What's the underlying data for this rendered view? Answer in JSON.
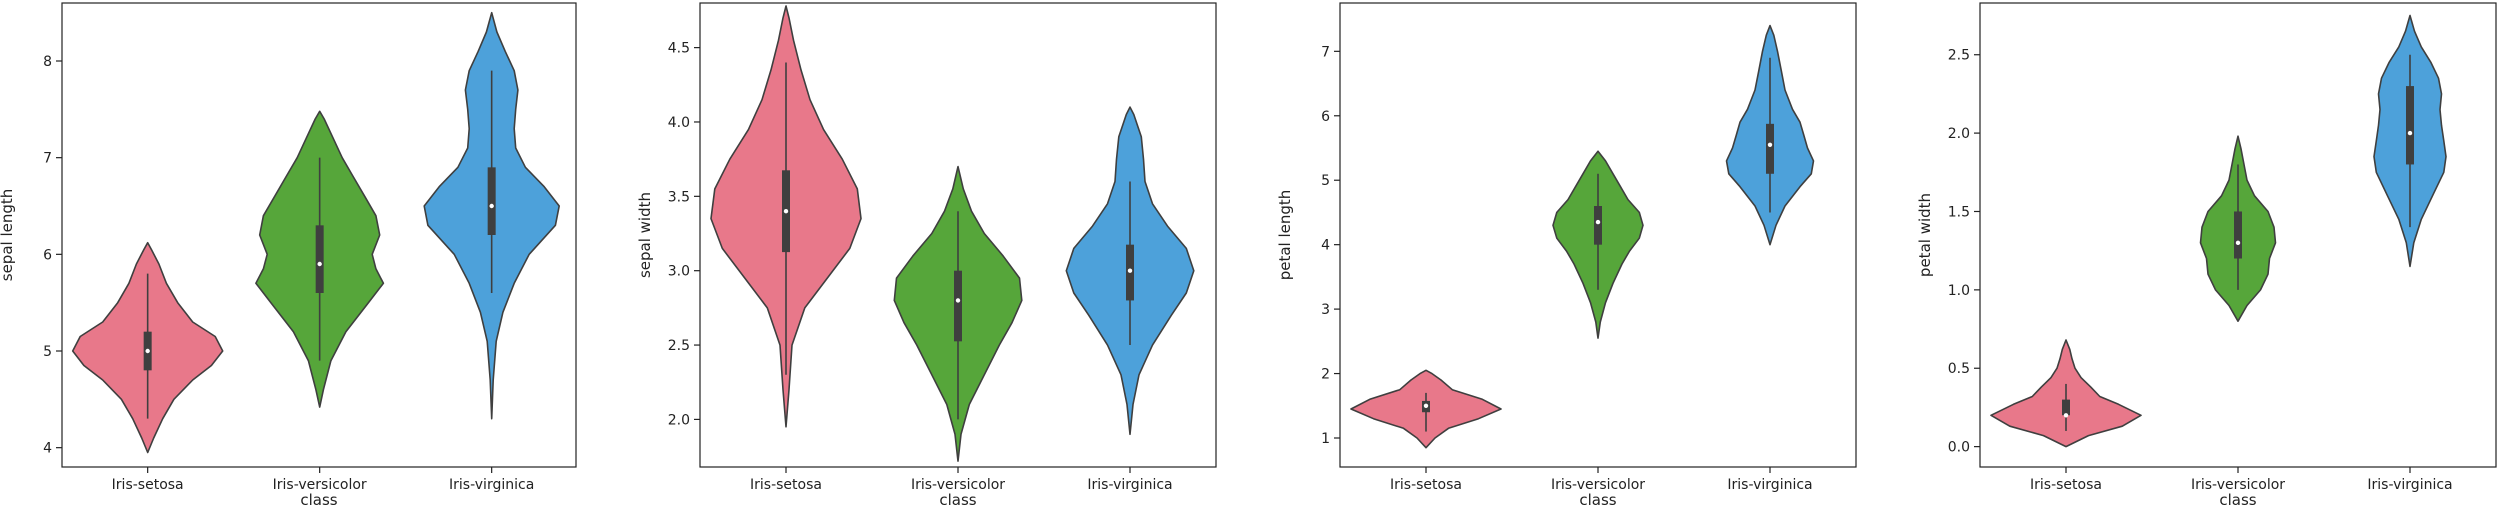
{
  "chart_data": [
    {
      "type": "violin",
      "xlabel": "class",
      "ylabel": "sepal length",
      "categories": [
        "Iris-setosa",
        "Iris-versicolor",
        "Iris-virginica"
      ],
      "ylim": [
        3.8,
        8.6
      ],
      "yticks": [
        4,
        5,
        6,
        7,
        8
      ],
      "violins": [
        {
          "category": "Iris-setosa",
          "color": "#e8788a",
          "density": [
            [
              3.95,
              0.0
            ],
            [
              4.1,
              0.08
            ],
            [
              4.3,
              0.2
            ],
            [
              4.5,
              0.35
            ],
            [
              4.7,
              0.6
            ],
            [
              4.85,
              0.85
            ],
            [
              5.0,
              1.0
            ],
            [
              5.15,
              0.9
            ],
            [
              5.3,
              0.6
            ],
            [
              5.5,
              0.4
            ],
            [
              5.7,
              0.25
            ],
            [
              5.9,
              0.15
            ],
            [
              6.05,
              0.05
            ],
            [
              6.12,
              0.0
            ]
          ],
          "whisker": [
            4.3,
            5.8
          ],
          "q1": 4.8,
          "q3": 5.2,
          "median": 5.0
        },
        {
          "category": "Iris-versicolor",
          "color": "#56a63a",
          "density": [
            [
              4.42,
              0.0
            ],
            [
              4.6,
              0.05
            ],
            [
              4.9,
              0.15
            ],
            [
              5.2,
              0.35
            ],
            [
              5.5,
              0.65
            ],
            [
              5.7,
              0.85
            ],
            [
              5.85,
              0.75
            ],
            [
              6.0,
              0.7
            ],
            [
              6.2,
              0.8
            ],
            [
              6.4,
              0.75
            ],
            [
              6.6,
              0.6
            ],
            [
              6.8,
              0.45
            ],
            [
              7.0,
              0.3
            ],
            [
              7.2,
              0.18
            ],
            [
              7.4,
              0.06
            ],
            [
              7.48,
              0.0
            ]
          ],
          "whisker": [
            4.9,
            7.0
          ],
          "q1": 5.6,
          "q3": 6.3,
          "median": 5.9
        },
        {
          "category": "Iris-virginica",
          "color": "#4da1da",
          "density": [
            [
              4.3,
              0.0
            ],
            [
              4.7,
              0.02
            ],
            [
              5.1,
              0.06
            ],
            [
              5.4,
              0.15
            ],
            [
              5.7,
              0.3
            ],
            [
              6.0,
              0.5
            ],
            [
              6.3,
              0.85
            ],
            [
              6.5,
              0.9
            ],
            [
              6.7,
              0.7
            ],
            [
              6.9,
              0.45
            ],
            [
              7.1,
              0.32
            ],
            [
              7.3,
              0.3
            ],
            [
              7.5,
              0.32
            ],
            [
              7.7,
              0.35
            ],
            [
              7.9,
              0.3
            ],
            [
              8.1,
              0.18
            ],
            [
              8.3,
              0.07
            ],
            [
              8.5,
              0.0
            ]
          ],
          "whisker": [
            5.6,
            7.9
          ],
          "q1": 6.2,
          "q3": 6.9,
          "median": 6.5
        }
      ]
    },
    {
      "type": "violin",
      "xlabel": "class",
      "ylabel": "sepal width",
      "categories": [
        "Iris-setosa",
        "Iris-versicolor",
        "Iris-virginica"
      ],
      "ylim": [
        1.68,
        4.8
      ],
      "yticks": [
        2.0,
        2.5,
        3.0,
        3.5,
        4.0,
        4.5
      ],
      "yticklabels": [
        "2.0",
        "2.5",
        "3.0",
        "3.5",
        "4.0",
        "4.5"
      ],
      "violins": [
        {
          "category": "Iris-setosa",
          "color": "#e8788a",
          "density": [
            [
              1.95,
              0.0
            ],
            [
              2.2,
              0.04
            ],
            [
              2.5,
              0.08
            ],
            [
              2.75,
              0.25
            ],
            [
              2.95,
              0.55
            ],
            [
              3.15,
              0.85
            ],
            [
              3.35,
              1.0
            ],
            [
              3.55,
              0.95
            ],
            [
              3.75,
              0.75
            ],
            [
              3.95,
              0.5
            ],
            [
              4.15,
              0.32
            ],
            [
              4.35,
              0.2
            ],
            [
              4.55,
              0.1
            ],
            [
              4.7,
              0.04
            ],
            [
              4.78,
              0.0
            ]
          ],
          "whisker": [
            2.3,
            4.4
          ],
          "q1": 3.125,
          "q3": 3.675,
          "median": 3.4
        },
        {
          "category": "Iris-versicolor",
          "color": "#56a63a",
          "density": [
            [
              1.72,
              0.0
            ],
            [
              1.9,
              0.04
            ],
            [
              2.1,
              0.15
            ],
            [
              2.3,
              0.35
            ],
            [
              2.5,
              0.55
            ],
            [
              2.65,
              0.72
            ],
            [
              2.8,
              0.85
            ],
            [
              2.95,
              0.82
            ],
            [
              3.1,
              0.6
            ],
            [
              3.25,
              0.35
            ],
            [
              3.4,
              0.18
            ],
            [
              3.55,
              0.07
            ],
            [
              3.7,
              0.0
            ]
          ],
          "whisker": [
            2.0,
            3.4
          ],
          "q1": 2.525,
          "q3": 3.0,
          "median": 2.8
        },
        {
          "category": "Iris-virginica",
          "color": "#4da1da",
          "density": [
            [
              1.9,
              0.0
            ],
            [
              2.1,
              0.04
            ],
            [
              2.3,
              0.12
            ],
            [
              2.5,
              0.3
            ],
            [
              2.7,
              0.55
            ],
            [
              2.85,
              0.75
            ],
            [
              3.0,
              0.85
            ],
            [
              3.15,
              0.75
            ],
            [
              3.3,
              0.5
            ],
            [
              3.45,
              0.3
            ],
            [
              3.6,
              0.2
            ],
            [
              3.75,
              0.18
            ],
            [
              3.9,
              0.15
            ],
            [
              4.05,
              0.05
            ],
            [
              4.1,
              0.0
            ]
          ],
          "whisker": [
            2.5,
            3.6
          ],
          "q1": 2.8,
          "q3": 3.175,
          "median": 3.0
        }
      ]
    },
    {
      "type": "violin",
      "xlabel": "class",
      "ylabel": "petal length",
      "categories": [
        "Iris-setosa",
        "Iris-versicolor",
        "Iris-virginica"
      ],
      "ylim": [
        0.55,
        7.75
      ],
      "yticks": [
        1,
        2,
        3,
        4,
        5,
        6,
        7
      ],
      "violins": [
        {
          "category": "Iris-setosa",
          "color": "#e8788a",
          "density": [
            [
              0.85,
              0.0
            ],
            [
              1.0,
              0.12
            ],
            [
              1.15,
              0.3
            ],
            [
              1.3,
              0.7
            ],
            [
              1.45,
              1.0
            ],
            [
              1.6,
              0.75
            ],
            [
              1.75,
              0.35
            ],
            [
              1.9,
              0.2
            ],
            [
              2.0,
              0.08
            ],
            [
              2.05,
              0.0
            ]
          ],
          "whisker": [
            1.1,
            1.7
          ],
          "q1": 1.4,
          "q3": 1.575,
          "median": 1.5
        },
        {
          "category": "Iris-versicolor",
          "color": "#56a63a",
          "density": [
            [
              2.55,
              0.0
            ],
            [
              2.8,
              0.03
            ],
            [
              3.1,
              0.1
            ],
            [
              3.4,
              0.2
            ],
            [
              3.7,
              0.32
            ],
            [
              3.9,
              0.42
            ],
            [
              4.1,
              0.55
            ],
            [
              4.3,
              0.6
            ],
            [
              4.5,
              0.55
            ],
            [
              4.7,
              0.4
            ],
            [
              4.9,
              0.3
            ],
            [
              5.1,
              0.2
            ],
            [
              5.3,
              0.1
            ],
            [
              5.45,
              0.0
            ]
          ],
          "whisker": [
            3.3,
            5.1
          ],
          "q1": 4.0,
          "q3": 4.6,
          "median": 4.35
        },
        {
          "category": "Iris-virginica",
          "color": "#4da1da",
          "density": [
            [
              4.0,
              0.0
            ],
            [
              4.3,
              0.08
            ],
            [
              4.6,
              0.2
            ],
            [
              4.9,
              0.4
            ],
            [
              5.1,
              0.55
            ],
            [
              5.3,
              0.58
            ],
            [
              5.5,
              0.5
            ],
            [
              5.7,
              0.45
            ],
            [
              5.9,
              0.4
            ],
            [
              6.1,
              0.3
            ],
            [
              6.4,
              0.2
            ],
            [
              6.7,
              0.15
            ],
            [
              7.0,
              0.1
            ],
            [
              7.25,
              0.05
            ],
            [
              7.4,
              0.0
            ]
          ],
          "whisker": [
            4.5,
            6.9
          ],
          "q1": 5.1,
          "q3": 5.875,
          "median": 5.55
        }
      ]
    },
    {
      "type": "violin",
      "xlabel": "class",
      "ylabel": "petal width",
      "categories": [
        "Iris-setosa",
        "Iris-versicolor",
        "Iris-virginica"
      ],
      "ylim": [
        -0.13,
        2.83
      ],
      "yticks": [
        0.0,
        0.5,
        1.0,
        1.5,
        2.0,
        2.5
      ],
      "yticklabels": [
        "0.0",
        "0.5",
        "1.0",
        "1.5",
        "2.0",
        "2.5"
      ],
      "violins": [
        {
          "category": "Iris-setosa",
          "color": "#e8788a",
          "density": [
            [
              0.0,
              0.0
            ],
            [
              0.07,
              0.3
            ],
            [
              0.13,
              0.75
            ],
            [
              0.2,
              1.0
            ],
            [
              0.27,
              0.7
            ],
            [
              0.32,
              0.45
            ],
            [
              0.38,
              0.33
            ],
            [
              0.44,
              0.2
            ],
            [
              0.5,
              0.12
            ],
            [
              0.56,
              0.08
            ],
            [
              0.62,
              0.05
            ],
            [
              0.68,
              0.0
            ]
          ],
          "whisker": [
            0.1,
            0.4
          ],
          "q1": 0.2,
          "q3": 0.3,
          "median": 0.2
        },
        {
          "category": "Iris-versicolor",
          "color": "#56a63a",
          "density": [
            [
              0.8,
              0.0
            ],
            [
              0.9,
              0.12
            ],
            [
              1.0,
              0.3
            ],
            [
              1.1,
              0.4
            ],
            [
              1.2,
              0.42
            ],
            [
              1.3,
              0.5
            ],
            [
              1.4,
              0.48
            ],
            [
              1.5,
              0.4
            ],
            [
              1.6,
              0.22
            ],
            [
              1.7,
              0.12
            ],
            [
              1.8,
              0.08
            ],
            [
              1.9,
              0.04
            ],
            [
              1.98,
              0.0
            ]
          ],
          "whisker": [
            1.0,
            1.8
          ],
          "q1": 1.2,
          "q3": 1.5,
          "median": 1.3
        },
        {
          "category": "Iris-virginica",
          "color": "#4da1da",
          "density": [
            [
              1.15,
              0.0
            ],
            [
              1.3,
              0.05
            ],
            [
              1.45,
              0.15
            ],
            [
              1.6,
              0.3
            ],
            [
              1.75,
              0.45
            ],
            [
              1.85,
              0.48
            ],
            [
              1.95,
              0.45
            ],
            [
              2.05,
              0.42
            ],
            [
              2.15,
              0.4
            ],
            [
              2.25,
              0.42
            ],
            [
              2.35,
              0.38
            ],
            [
              2.45,
              0.28
            ],
            [
              2.55,
              0.15
            ],
            [
              2.65,
              0.06
            ],
            [
              2.75,
              0.0
            ]
          ],
          "whisker": [
            1.4,
            2.5
          ],
          "q1": 1.8,
          "q3": 2.3,
          "median": 2.0
        }
      ]
    }
  ]
}
